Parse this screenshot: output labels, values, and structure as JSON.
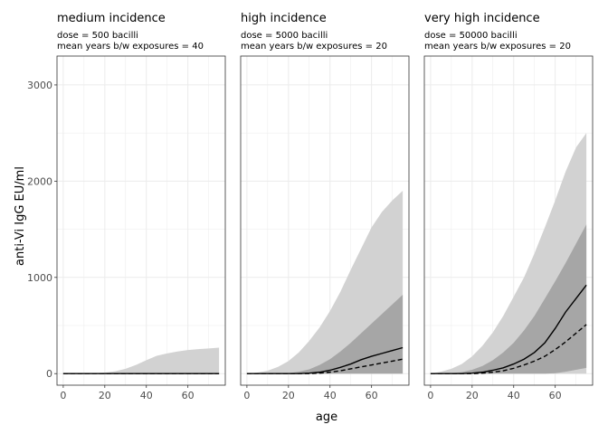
{
  "chart_data": {
    "type": "area",
    "ylabel": "anti-Vi IgG EU/ml",
    "xlabel": "age",
    "xlim": [
      -3,
      78
    ],
    "ylim": [
      -120,
      3300
    ],
    "xticks": [
      0,
      20,
      40,
      60
    ],
    "yticks": [
      0,
      1000,
      2000,
      3000
    ],
    "grid": true,
    "colors": {
      "outer_band": "#d2d2d2",
      "inner_band": "#a6a6a6",
      "median_line": "#000000",
      "mean_line": "#000000",
      "grid": "#ebebeb",
      "panel_border": "#333333"
    },
    "x": [
      0,
      5,
      10,
      15,
      20,
      25,
      30,
      35,
      40,
      45,
      50,
      55,
      60,
      65,
      70,
      75
    ],
    "panels": [
      {
        "title": "medium incidence",
        "subtitle_line1": "dose = 500 bacilli",
        "subtitle_line2": "mean years b/w exposures = 40",
        "outer_upper": [
          0,
          0,
          0,
          5,
          10,
          25,
          50,
          90,
          140,
          185,
          210,
          230,
          245,
          255,
          262,
          270
        ],
        "outer_lower": [
          0,
          0,
          0,
          0,
          0,
          0,
          0,
          0,
          0,
          0,
          0,
          0,
          0,
          0,
          0,
          0
        ],
        "inner_upper": [
          0,
          0,
          0,
          0,
          0,
          0,
          0,
          0,
          0,
          0,
          0,
          0,
          0,
          0,
          0,
          0
        ],
        "inner_lower": [
          0,
          0,
          0,
          0,
          0,
          0,
          0,
          0,
          0,
          0,
          0,
          0,
          0,
          0,
          0,
          0
        ],
        "median": [
          0,
          0,
          0,
          0,
          0,
          0,
          0,
          0,
          0,
          0,
          0,
          0,
          0,
          0,
          0,
          0
        ],
        "mean": [
          0,
          0,
          0,
          0,
          0,
          0,
          0,
          0,
          0,
          0,
          0,
          0,
          0,
          0,
          0,
          0
        ]
      },
      {
        "title": "high incidence",
        "subtitle_line1": "dose = 5000 bacilli",
        "subtitle_line2": "mean years b/w exposures = 20",
        "outer_upper": [
          0,
          10,
          30,
          70,
          130,
          220,
          340,
          480,
          650,
          850,
          1080,
          1300,
          1520,
          1680,
          1800,
          1900
        ],
        "outer_lower": [
          0,
          0,
          0,
          0,
          0,
          0,
          0,
          0,
          0,
          0,
          0,
          0,
          0,
          0,
          0,
          0
        ],
        "inner_upper": [
          0,
          0,
          0,
          0,
          5,
          20,
          45,
          90,
          150,
          230,
          320,
          420,
          520,
          620,
          720,
          820
        ],
        "inner_lower": [
          0,
          0,
          0,
          0,
          0,
          0,
          0,
          0,
          0,
          0,
          0,
          0,
          0,
          0,
          0,
          0
        ],
        "median": [
          0,
          0,
          0,
          0,
          0,
          0,
          5,
          15,
          35,
          65,
          100,
          145,
          180,
          210,
          240,
          270
        ],
        "mean": [
          0,
          0,
          0,
          0,
          0,
          0,
          0,
          5,
          15,
          30,
          50,
          70,
          90,
          110,
          130,
          150
        ]
      },
      {
        "title": "very high incidence",
        "subtitle_line1": "dose = 50000 bacilli",
        "subtitle_line2": "mean years b/w exposures = 20",
        "outer_upper": [
          0,
          20,
          50,
          100,
          180,
          290,
          430,
          600,
          800,
          1000,
          1250,
          1520,
          1800,
          2100,
          2350,
          2500
        ],
        "outer_lower": [
          0,
          0,
          0,
          0,
          0,
          0,
          0,
          0,
          0,
          0,
          0,
          0,
          0,
          0,
          0,
          0
        ],
        "inner_upper": [
          0,
          0,
          5,
          15,
          40,
          80,
          140,
          220,
          320,
          450,
          600,
          780,
          960,
          1150,
          1350,
          1550
        ],
        "inner_lower": [
          0,
          0,
          0,
          0,
          0,
          0,
          0,
          0,
          0,
          0,
          0,
          0,
          5,
          20,
          40,
          60
        ],
        "median": [
          0,
          0,
          0,
          0,
          5,
          15,
          35,
          60,
          100,
          150,
          220,
          320,
          470,
          640,
          780,
          920
        ],
        "mean": [
          0,
          0,
          0,
          0,
          0,
          5,
          15,
          30,
          55,
          90,
          130,
          180,
          250,
          330,
          420,
          510
        ]
      }
    ]
  }
}
